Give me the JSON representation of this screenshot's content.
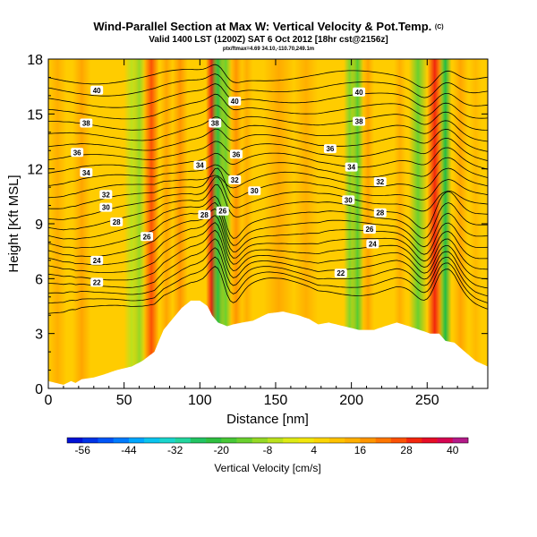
{
  "title": "Wind-Parallel Section at Max W: Vertical Velocity & Pot.Temp.",
  "copyright_mark": "(C)",
  "subtitle": "Valid 1400 LST (1200Z) SAT 6 Oct 2012 [18hr cst@2156z]",
  "subsubtitle": "ptx/ftmax=4.69 34.10,-110.70,249.1m",
  "colors": {
    "terrain": "#ffffff",
    "isentrope": "#000000",
    "frame": "#000000"
  },
  "chart_data": {
    "type": "heatmap",
    "xlabel": "Distance [nm]",
    "ylabel": "Height [Kft MSL]",
    "xlim": [
      0,
      290
    ],
    "ylim": [
      0,
      18
    ],
    "x_ticks": [
      0,
      50,
      100,
      150,
      200,
      250
    ],
    "y_ticks": [
      0,
      3,
      6,
      9,
      12,
      15,
      18
    ],
    "background_value": 8,
    "vertical_velocity_features": [
      {
        "x": 6,
        "width": 6,
        "value": 14
      },
      {
        "x": 22,
        "width": 6,
        "value": 16
      },
      {
        "x": 55,
        "width": 5,
        "value": -6
      },
      {
        "x": 60,
        "width": 4,
        "value": -10
      },
      {
        "x": 68,
        "width": 5,
        "value": 26
      },
      {
        "x": 78,
        "width": 4,
        "value": 16
      },
      {
        "x": 87,
        "width": 5,
        "value": 18
      },
      {
        "x": 108,
        "width": 4,
        "value": 32
      },
      {
        "x": 112,
        "width": 5,
        "value": -22
      },
      {
        "x": 117,
        "width": 4,
        "value": -14
      },
      {
        "x": 124,
        "width": 4,
        "value": 18
      },
      {
        "x": 131,
        "width": 4,
        "value": 14
      },
      {
        "x": 152,
        "width": 10,
        "value": 15
      },
      {
        "x": 170,
        "width": 8,
        "value": 14
      },
      {
        "x": 199,
        "width": 4,
        "value": -12
      },
      {
        "x": 204,
        "width": 4,
        "value": -16
      },
      {
        "x": 211,
        "width": 4,
        "value": 16
      },
      {
        "x": 232,
        "width": 4,
        "value": 14
      },
      {
        "x": 244,
        "width": 6,
        "value": -14
      },
      {
        "x": 255,
        "width": 5,
        "value": 30
      },
      {
        "x": 262,
        "width": 4,
        "value": -24
      },
      {
        "x": 272,
        "width": 5,
        "value": 16
      },
      {
        "x": 282,
        "width": 4,
        "value": 12
      }
    ],
    "terrain_profile": {
      "x": [
        0,
        5,
        10,
        15,
        18,
        22,
        30,
        38,
        45,
        55,
        62,
        70,
        76,
        82,
        88,
        94,
        100,
        105,
        108,
        110,
        112,
        118,
        122,
        128,
        135,
        145,
        155,
        165,
        172,
        178,
        185,
        195,
        205,
        215,
        222,
        230,
        238,
        245,
        252,
        258,
        262,
        268,
        275,
        282,
        290
      ],
      "height": [
        0.4,
        0.3,
        0.2,
        0.4,
        0.3,
        0.5,
        0.6,
        0.8,
        1.0,
        1.2,
        1.5,
        2.0,
        3.2,
        3.8,
        4.4,
        4.8,
        4.8,
        4.5,
        4.0,
        3.8,
        3.6,
        3.4,
        3.5,
        3.6,
        3.7,
        4.1,
        4.2,
        4.0,
        3.8,
        3.5,
        3.6,
        3.4,
        3.2,
        3.2,
        3.4,
        3.6,
        3.4,
        3.2,
        3.0,
        3.0,
        2.6,
        2.5,
        2.0,
        1.5,
        1.2
      ]
    },
    "isentropes_levels": [
      20,
      21,
      22,
      23,
      24,
      25,
      26,
      27,
      28,
      29,
      30,
      31,
      32,
      33,
      34,
      35,
      36,
      37,
      38,
      39,
      40,
      41,
      42,
      43
    ],
    "isentrope_labels": [
      {
        "text": "40",
        "x": 32,
        "y": 16.3
      },
      {
        "text": "38",
        "x": 25,
        "y": 14.5
      },
      {
        "text": "36",
        "x": 19,
        "y": 12.9
      },
      {
        "text": "34",
        "x": 25,
        "y": 11.8
      },
      {
        "text": "32",
        "x": 38,
        "y": 10.6
      },
      {
        "text": "30",
        "x": 38,
        "y": 9.9
      },
      {
        "text": "28",
        "x": 45,
        "y": 9.1
      },
      {
        "text": "26",
        "x": 65,
        "y": 8.3
      },
      {
        "text": "24",
        "x": 32,
        "y": 7.0
      },
      {
        "text": "22",
        "x": 32,
        "y": 5.8
      },
      {
        "text": "40",
        "x": 123,
        "y": 15.7
      },
      {
        "text": "38",
        "x": 110,
        "y": 14.5
      },
      {
        "text": "36",
        "x": 124,
        "y": 12.8
      },
      {
        "text": "34",
        "x": 100,
        "y": 12.2
      },
      {
        "text": "32",
        "x": 123,
        "y": 11.4
      },
      {
        "text": "30",
        "x": 136,
        "y": 10.8
      },
      {
        "text": "28",
        "x": 103,
        "y": 9.5
      },
      {
        "text": "26",
        "x": 115,
        "y": 9.7
      },
      {
        "text": "40",
        "x": 205,
        "y": 16.2
      },
      {
        "text": "38",
        "x": 205,
        "y": 14.6
      },
      {
        "text": "36",
        "x": 186,
        "y": 13.1
      },
      {
        "text": "34",
        "x": 200,
        "y": 12.1
      },
      {
        "text": "32",
        "x": 219,
        "y": 11.3
      },
      {
        "text": "30",
        "x": 198,
        "y": 10.3
      },
      {
        "text": "28",
        "x": 219,
        "y": 9.6
      },
      {
        "text": "26",
        "x": 212,
        "y": 8.7
      },
      {
        "text": "24",
        "x": 214,
        "y": 7.9
      },
      {
        "text": "22",
        "x": 193,
        "y": 6.3
      }
    ],
    "colorbar": {
      "title": "Vertical Velocity [cm/s]",
      "min": -60,
      "max": 44,
      "step": 4,
      "tick_labels": [
        -56,
        -44,
        -32,
        -20,
        -8,
        4,
        16,
        28,
        40
      ],
      "stops": [
        {
          "value": -60,
          "color": "#0000cc"
        },
        {
          "value": -48,
          "color": "#0066ff"
        },
        {
          "value": -40,
          "color": "#00bbff"
        },
        {
          "value": -32,
          "color": "#22ddbb"
        },
        {
          "value": -24,
          "color": "#22bb44"
        },
        {
          "value": -16,
          "color": "#55cc33"
        },
        {
          "value": -8,
          "color": "#aadd22"
        },
        {
          "value": 0,
          "color": "#eeee11"
        },
        {
          "value": 8,
          "color": "#ffcc00"
        },
        {
          "value": 16,
          "color": "#ffa500"
        },
        {
          "value": 24,
          "color": "#ff6600"
        },
        {
          "value": 32,
          "color": "#ee1111"
        },
        {
          "value": 40,
          "color": "#cc0066"
        },
        {
          "value": 44,
          "color": "#9933aa"
        }
      ]
    }
  }
}
